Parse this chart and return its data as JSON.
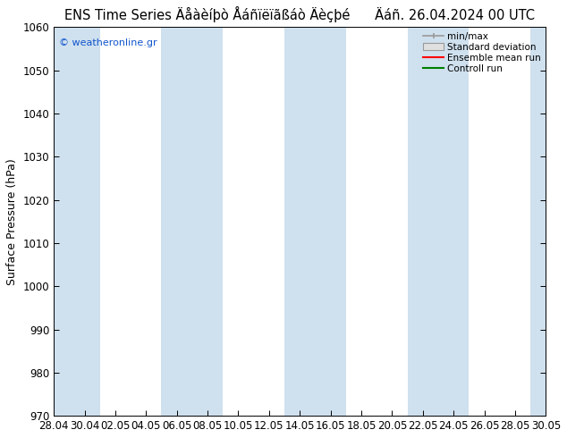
{
  "title_left": "ENS Time Series Äåàèíþò Åáñïëïãßáò Äèçþé",
  "title_right": "Äáñ. 26.04.2024 00 UTC",
  "ylabel": "Surface Pressure (hPa)",
  "watermark": "© weatheronline.gr",
  "ylim": [
    970,
    1060
  ],
  "yticks": [
    970,
    980,
    990,
    1000,
    1010,
    1020,
    1030,
    1040,
    1050,
    1060
  ],
  "x_tick_labels": [
    "28.04",
    "30.04",
    "02.05",
    "04.05",
    "06.05",
    "08.05",
    "10.05",
    "12.05",
    "14.05",
    "16.05",
    "18.05",
    "20.05",
    "22.05",
    "24.05",
    "26.05",
    "28.05",
    "30.05"
  ],
  "n_ticks": 17,
  "band_color": "#cfe0ee",
  "bg_color": "#ffffff",
  "plot_bg": "#ffffff",
  "legend_items": [
    "min/max",
    "Standard deviation",
    "Ensemble mean run",
    "Controll run"
  ],
  "legend_colors": [
    "#999999",
    "#cccccc",
    "#ff0000",
    "#008000"
  ],
  "title_fontsize": 10.5,
  "tick_fontsize": 8.5,
  "ylabel_fontsize": 9
}
